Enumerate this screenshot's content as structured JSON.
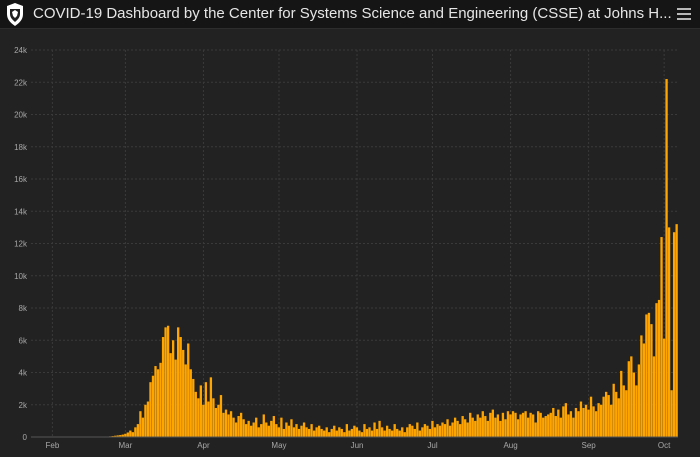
{
  "header": {
    "title": "COVID-19 Dashboard by the Center for Systems Science and Engineering (CSSE) at Johns H...",
    "logo_icon": "shield-crest-icon",
    "menu_icon": "hamburger-menu-icon"
  },
  "colors": {
    "background": "#222222",
    "header_background": "#151515",
    "bar": "#FFA500",
    "grid": "#3a3a3a",
    "text": "#e6e6e6"
  },
  "chart_data": {
    "type": "bar",
    "title": "",
    "xlabel": "",
    "ylabel": "",
    "grid": true,
    "ylim": [
      0,
      24000
    ],
    "y_ticks": [
      {
        "value": 0,
        "label": "0"
      },
      {
        "value": 2000,
        "label": "2k"
      },
      {
        "value": 4000,
        "label": "4k"
      },
      {
        "value": 6000,
        "label": "6k"
      },
      {
        "value": 8000,
        "label": "8k"
      },
      {
        "value": 10000,
        "label": "10k"
      },
      {
        "value": 12000,
        "label": "12k"
      },
      {
        "value": 14000,
        "label": "14k"
      },
      {
        "value": 16000,
        "label": "16k"
      },
      {
        "value": 18000,
        "label": "18k"
      },
      {
        "value": 20000,
        "label": "20k"
      },
      {
        "value": 22000,
        "label": "22k"
      },
      {
        "value": 24000,
        "label": "24k"
      }
    ],
    "x_ticks": [
      {
        "index": 8,
        "label": "Feb"
      },
      {
        "index": 37,
        "label": "Mar"
      },
      {
        "index": 68,
        "label": "Apr"
      },
      {
        "index": 98,
        "label": "May"
      },
      {
        "index": 129,
        "label": "Jun"
      },
      {
        "index": 159,
        "label": "Jul"
      },
      {
        "index": 190,
        "label": "Aug"
      },
      {
        "index": 221,
        "label": "Sep"
      },
      {
        "index": 251,
        "label": "Oct"
      }
    ],
    "series": [
      {
        "values": [
          0,
          0,
          0,
          0,
          0,
          0,
          0,
          0,
          0,
          0,
          0,
          0,
          0,
          0,
          0,
          0,
          0,
          0,
          0,
          0,
          0,
          0,
          0,
          0,
          0,
          0,
          10,
          10,
          15,
          20,
          30,
          40,
          60,
          80,
          100,
          120,
          150,
          200,
          280,
          400,
          300,
          600,
          800,
          1600,
          1200,
          2000,
          2200,
          3400,
          3800,
          4400,
          4200,
          4600,
          6200,
          6800,
          6900,
          5200,
          6000,
          4800,
          6800,
          6200,
          5400,
          4500,
          5800,
          4200,
          3600,
          2800,
          2400,
          3200,
          2000,
          3400,
          2200,
          3700,
          2400,
          1800,
          2000,
          2600,
          1500,
          1700,
          1400,
          1600,
          1200,
          900,
          1300,
          1500,
          1100,
          800,
          1000,
          700,
          900,
          1200,
          600,
          800,
          1400,
          900,
          700,
          1000,
          1300,
          800,
          600,
          1200,
          500,
          900,
          700,
          1100,
          600,
          800,
          500,
          700,
          900,
          600,
          500,
          800,
          400,
          600,
          700,
          500,
          400,
          600,
          300,
          500,
          700,
          400,
          600,
          500,
          300,
          800,
          400,
          500,
          700,
          600,
          400,
          300,
          800,
          500,
          600,
          400,
          900,
          500,
          1000,
          600,
          400,
          700,
          500,
          400,
          800,
          500,
          400,
          600,
          300,
          600,
          800,
          700,
          500,
          900,
          400,
          600,
          800,
          700,
          500,
          1000,
          600,
          800,
          700,
          900,
          800,
          1100,
          700,
          900,
          1200,
          1000,
          800,
          1300,
          1100,
          900,
          1500,
          1200,
          1000,
          1400,
          1200,
          1600,
          1300,
          1000,
          1500,
          1700,
          1200,
          1400,
          1000,
          1500,
          1100,
          1600,
          1400,
          1600,
          1500,
          1100,
          1400,
          1500,
          1600,
          1200,
          1500,
          1400,
          900,
          1600,
          1500,
          1200,
          1300,
          1400,
          1500,
          1800,
          1300,
          1700,
          1200,
          1900,
          2100,
          1400,
          1600,
          1200,
          1800,
          1600,
          2200,
          1800,
          2000,
          1700,
          2500,
          1900,
          1600,
          2100,
          2000,
          2500,
          2800,
          2600,
          2000,
          3300,
          2800,
          2400,
          4100,
          3200,
          2900,
          4700,
          5000,
          4000,
          3200,
          4500,
          6300,
          5800,
          7600,
          7700,
          7000,
          5000,
          8300,
          8500,
          12400,
          6100,
          22200,
          13000,
          2900,
          12700,
          13200
        ]
      }
    ]
  }
}
